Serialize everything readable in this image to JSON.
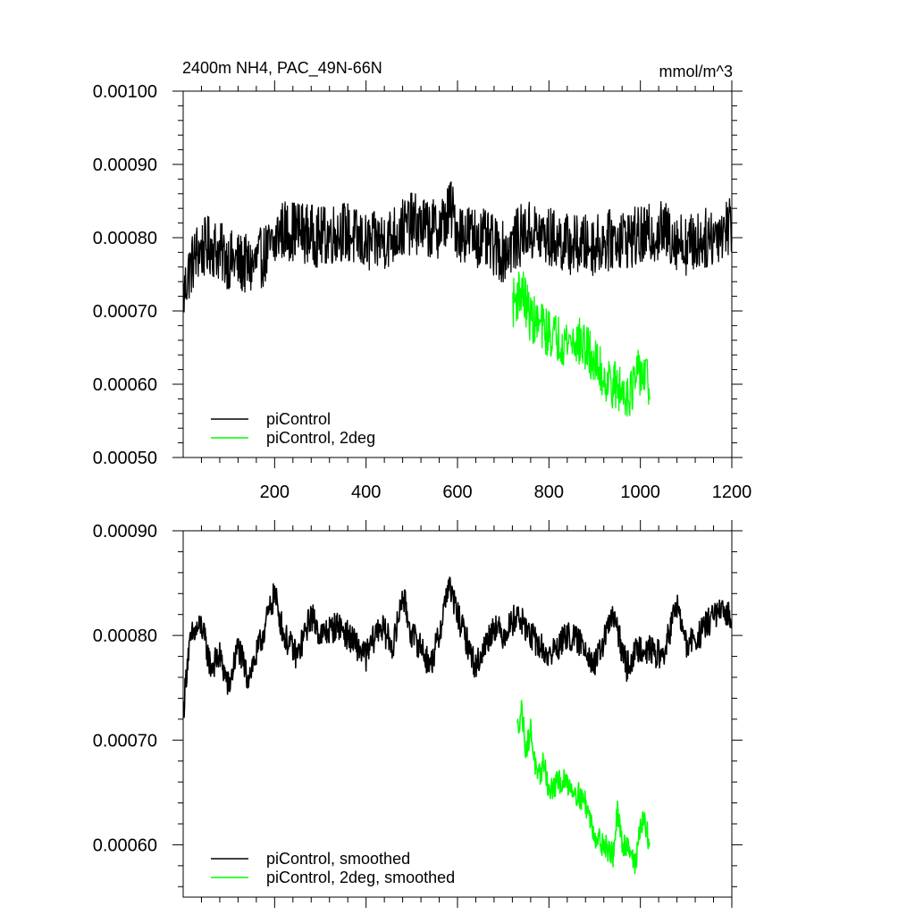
{
  "chart_data": [
    {
      "type": "line",
      "title": "2400m NH4, PAC_49N-66N",
      "units": "mmol/m^3",
      "xlim": [
        0,
        1200
      ],
      "ylim": [
        0.0005,
        0.001
      ],
      "x_ticks": [
        200,
        400,
        600,
        800,
        1000,
        1200
      ],
      "x_tick_labels": [
        "200",
        "400",
        "600",
        "800",
        "1000",
        "1200"
      ],
      "y_ticks": [
        0.0005,
        0.0006,
        0.0007,
        0.0008,
        0.0009,
        0.001
      ],
      "y_tick_labels": [
        "0.00050",
        "0.00060",
        "0.00070",
        "0.00080",
        "0.00090",
        "0.00100"
      ],
      "legend_position": "bottom-left",
      "series": [
        {
          "name": "piControl",
          "color": "#000000",
          "x_start": 1,
          "x_end": 1200,
          "anchors_x": [
            1,
            10,
            30,
            60,
            100,
            150,
            200,
            210,
            250,
            300,
            350,
            400,
            450,
            500,
            550,
            570,
            585,
            600,
            650,
            700,
            750,
            800,
            850,
            900,
            950,
            1000,
            1050,
            1100,
            1150,
            1200
          ],
          "anchors_y": [
            0.00072,
            0.00075,
            0.00078,
            0.00079,
            0.00077,
            0.00076,
            0.00079,
            0.00081,
            0.00081,
            0.0008,
            0.00081,
            0.00079,
            0.0008,
            0.00082,
            0.00081,
            0.00082,
            0.00084,
            0.00081,
            0.0008,
            0.00078,
            0.00081,
            0.0008,
            0.00079,
            0.00079,
            0.0008,
            0.0008,
            0.00081,
            0.00079,
            0.0008,
            0.00082
          ],
          "noise_amplitude": 4.2e-05,
          "point_count": 1200
        },
        {
          "name": "piControl, 2deg",
          "color": "#00ff00",
          "x_start": 721,
          "x_end": 1020,
          "anchors_x": [
            721,
            740,
            760,
            780,
            800,
            830,
            860,
            880,
            900,
            920,
            940,
            960,
            980,
            1000,
            1020
          ],
          "anchors_y": [
            0.00071,
            0.00073,
            0.00069,
            0.00068,
            0.00067,
            0.00066,
            0.00066,
            0.00065,
            0.00063,
            0.00061,
            0.0006,
            0.00059,
            0.00059,
            0.00062,
            0.0006
          ],
          "noise_amplitude": 3.4e-05,
          "point_count": 300
        }
      ]
    },
    {
      "type": "line",
      "title": "",
      "xlim": [
        0,
        1200
      ],
      "ylim": [
        0.00055,
        0.0009
      ],
      "x_ticks": [
        200,
        400,
        600,
        800,
        1000,
        1200
      ],
      "x_tick_labels": [],
      "y_ticks": [
        0.0006,
        0.0007,
        0.0008,
        0.0009
      ],
      "y_tick_labels": [
        "0.00060",
        "0.00070",
        "0.00080",
        "0.00090"
      ],
      "legend_position": "bottom-left",
      "series": [
        {
          "name": "piControl, smoothed",
          "color": "#000000",
          "x_start": 1,
          "x_end": 1200,
          "anchors_x": [
            1,
            10,
            20,
            40,
            60,
            80,
            100,
            120,
            140,
            160,
            180,
            200,
            220,
            250,
            280,
            300,
            340,
            380,
            400,
            430,
            460,
            480,
            500,
            520,
            540,
            560,
            580,
            600,
            640,
            680,
            700,
            730,
            760,
            800,
            840,
            880,
            900,
            940,
            970,
            1000,
            1050,
            1080,
            1100,
            1130,
            1160,
            1200
          ],
          "anchors_y": [
            0.00073,
            0.00078,
            0.0008,
            0.00081,
            0.00077,
            0.00078,
            0.00075,
            0.00079,
            0.00076,
            0.00078,
            0.00081,
            0.00084,
            0.0008,
            0.00078,
            0.00082,
            0.0008,
            0.00081,
            0.00079,
            0.00078,
            0.00081,
            0.00079,
            0.00084,
            0.0008,
            0.00079,
            0.00077,
            0.0008,
            0.00085,
            0.00082,
            0.00077,
            0.00081,
            0.0008,
            0.00082,
            0.0008,
            0.00078,
            0.0008,
            0.00079,
            0.00077,
            0.00082,
            0.00077,
            0.00079,
            0.00078,
            0.00083,
            0.00079,
            0.0008,
            0.00082,
            0.00082
          ],
          "noise_amplitude": 1.4e-05,
          "point_count": 1200
        },
        {
          "name": "piControl, 2deg, smoothed",
          "color": "#00ff00",
          "x_start": 731,
          "x_end": 1020,
          "anchors_x": [
            731,
            740,
            750,
            760,
            775,
            790,
            800,
            820,
            840,
            860,
            880,
            900,
            920,
            940,
            950,
            960,
            975,
            990,
            1000,
            1010,
            1020
          ],
          "anchors_y": [
            0.00071,
            0.00073,
            0.00069,
            0.00071,
            0.00066,
            0.00068,
            0.00065,
            0.00066,
            0.00066,
            0.00065,
            0.00064,
            0.00061,
            0.0006,
            0.00059,
            0.00063,
            0.0006,
            0.0006,
            0.00058,
            0.00062,
            0.00062,
            0.0006
          ],
          "noise_amplitude": 1.2e-05,
          "point_count": 290
        }
      ]
    }
  ]
}
